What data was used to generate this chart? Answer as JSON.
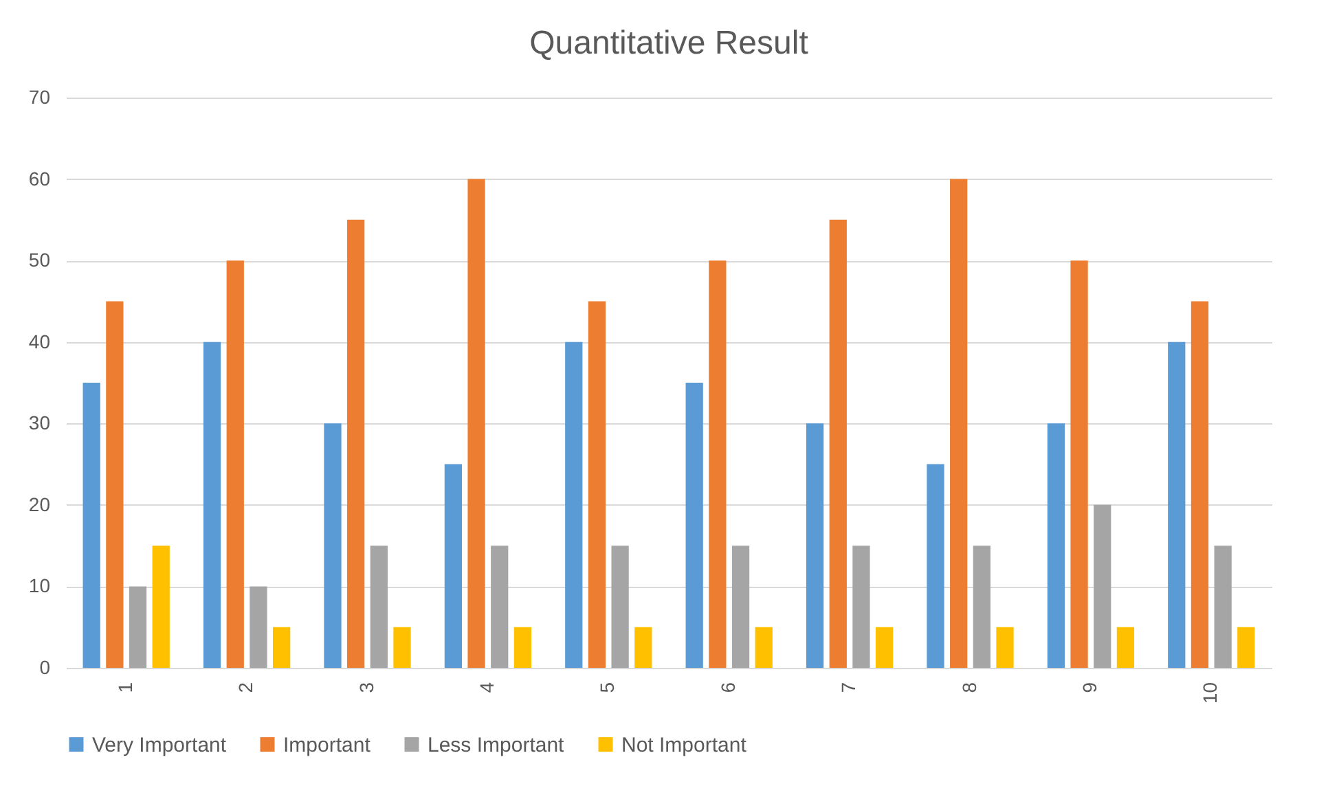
{
  "chart_data": {
    "type": "bar",
    "title": "Quantitative Result",
    "categories": [
      "1",
      "2",
      "3",
      "4",
      "5",
      "6",
      "7",
      "8",
      "9",
      "10"
    ],
    "series": [
      {
        "name": "Very Important",
        "color": "#5b9bd5",
        "values": [
          35,
          40,
          30,
          25,
          40,
          35,
          30,
          25,
          30,
          40
        ]
      },
      {
        "name": "Important",
        "color": "#ed7d31",
        "values": [
          45,
          50,
          55,
          60,
          45,
          50,
          55,
          60,
          50,
          45
        ]
      },
      {
        "name": "Less Important",
        "color": "#a5a5a5",
        "values": [
          10,
          10,
          15,
          15,
          15,
          15,
          15,
          15,
          20,
          15
        ]
      },
      {
        "name": "Not Important",
        "color": "#ffc000",
        "values": [
          15,
          5,
          5,
          5,
          5,
          5,
          5,
          5,
          5,
          5
        ]
      }
    ],
    "ylim": [
      0,
      70
    ],
    "yticks": [
      0,
      10,
      20,
      30,
      40,
      50,
      60,
      70
    ],
    "grid": "y",
    "legend": "bottom"
  }
}
